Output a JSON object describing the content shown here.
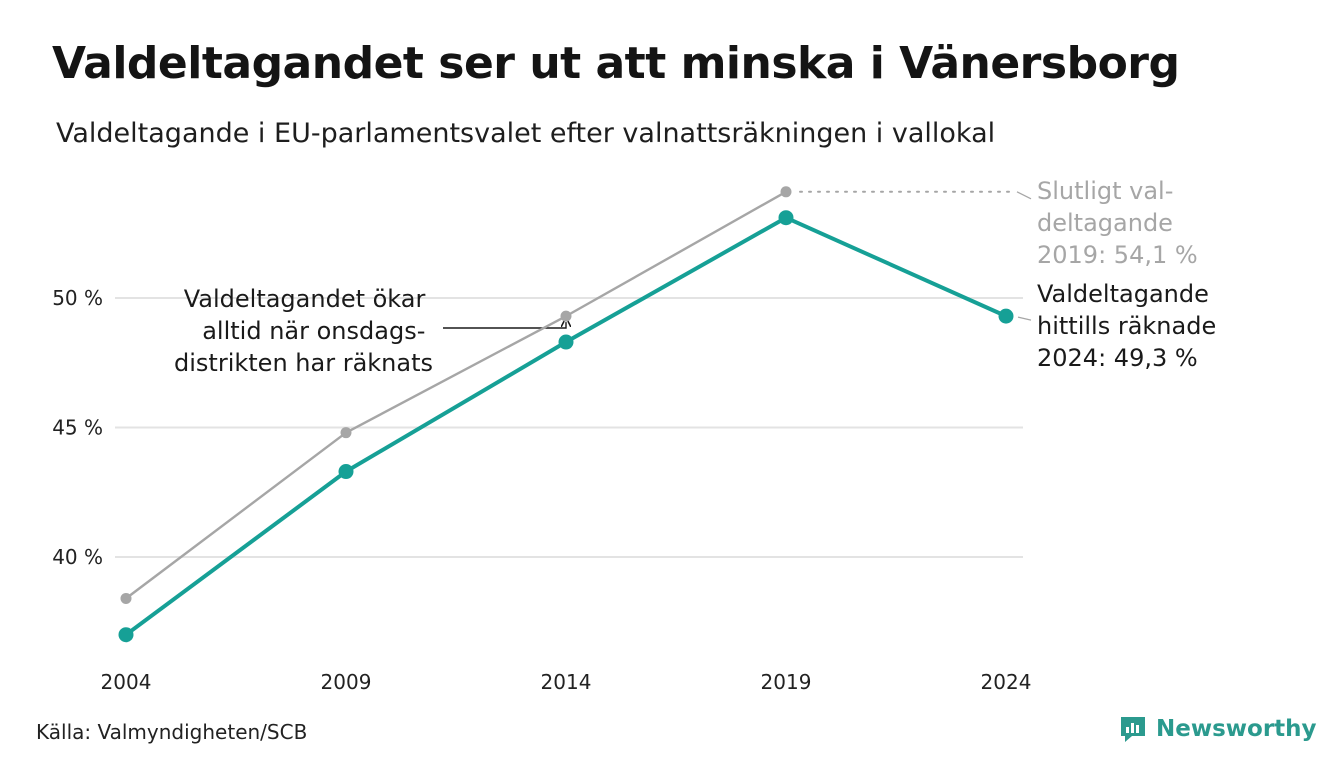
{
  "header": {
    "title": "Valdeltagandet ser ut att minska i Vänersborg",
    "subtitle": "Valdeltagande i EU-parlamentsvalet efter valnattsräkningen i vallokal"
  },
  "chart_data": {
    "type": "line",
    "x": [
      2004,
      2009,
      2014,
      2019,
      2024
    ],
    "ylim": [
      36.5,
      54.5
    ],
    "yticks": [
      40,
      45,
      50
    ],
    "ytick_labels": [
      "40 %",
      "45 %",
      "50 %"
    ],
    "xtick_labels": [
      "2004",
      "2009",
      "2014",
      "2019",
      "2024"
    ],
    "grid": true,
    "series": [
      {
        "key": "final",
        "x": [
          2004,
          2009,
          2014,
          2019
        ],
        "values": [
          38.4,
          44.8,
          49.3,
          54.1
        ],
        "color": "#a6a6a6"
      },
      {
        "key": "counted",
        "x": [
          2004,
          2009,
          2014,
          2019,
          2024
        ],
        "values": [
          37.0,
          43.3,
          48.3,
          53.1,
          49.3
        ],
        "color": "#16a096"
      }
    ],
    "annotations": {
      "final_label": [
        "Slutligt val-",
        "deltagande",
        "2019: 54,1 %"
      ],
      "counted_label": [
        "Valdeltagande",
        "hittills räknade",
        "2024: 49,3 %"
      ],
      "wednesday_note": [
        "Valdeltagandet ökar",
        "alltid när onsdags-",
        "distrikten har räknats"
      ]
    }
  },
  "footer": {
    "source": "Källa: Valmyndigheten/SCB",
    "brand": "Newsworthy",
    "brand_icon": "newsworthy-logo-icon",
    "brand_color": "#2b9a8e"
  }
}
